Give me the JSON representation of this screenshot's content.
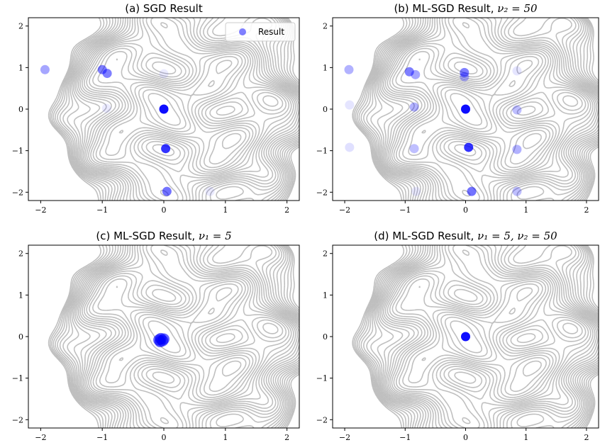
{
  "colors": {
    "contour": "#b4b4b4",
    "marker": "#0000ff",
    "axes": "#000000",
    "legend_border": "#cccccc"
  },
  "chart_data": [
    {
      "type": "scatter",
      "title": "(a) SGD Result",
      "title_math": "",
      "xlim": [
        -2.2,
        2.2
      ],
      "ylim": [
        -2.2,
        2.2
      ],
      "x_ticks": [
        -2,
        -1,
        0,
        1,
        2
      ],
      "y_ticks": [
        -2,
        -1,
        0,
        1,
        2
      ],
      "x_tick_labels": [
        "−2",
        "−1",
        "0",
        "1",
        "2"
      ],
      "y_tick_labels": [
        "−2",
        "−1",
        "0",
        "1",
        "2"
      ],
      "legend": {
        "label": "Result",
        "placement": "top-right"
      },
      "background": "contour lines of a multi-modal objective",
      "points": [
        {
          "x": -1.93,
          "y": 0.95,
          "alpha": 0.35
        },
        {
          "x": -1.0,
          "y": 0.95,
          "alpha": 0.5
        },
        {
          "x": -0.92,
          "y": 0.86,
          "alpha": 0.5
        },
        {
          "x": 0.0,
          "y": 0.85,
          "alpha": 0.08
        },
        {
          "x": -0.93,
          "y": 0.02,
          "alpha": 0.08
        },
        {
          "x": 0.0,
          "y": 0.0,
          "alpha": 0.95
        },
        {
          "x": 0.03,
          "y": -0.95,
          "alpha": 0.8
        },
        {
          "x": 0.05,
          "y": -1.98,
          "alpha": 0.55
        },
        {
          "x": 0.75,
          "y": -1.98,
          "alpha": 0.08
        }
      ]
    },
    {
      "type": "scatter",
      "title": "(b) ML-SGD Result, ",
      "title_math": "ν₂ = 50",
      "xlim": [
        -2.2,
        2.2
      ],
      "ylim": [
        -2.2,
        2.2
      ],
      "x_ticks": [
        -2,
        -1,
        0,
        1,
        2
      ],
      "y_ticks": [
        -2,
        -1,
        0,
        1,
        2
      ],
      "x_tick_labels": [
        "−2",
        "−1",
        "0",
        "1",
        "2"
      ],
      "y_tick_labels": [
        "−2",
        "−1",
        "0",
        "1",
        "2"
      ],
      "background": "contour lines of a multi-modal objective",
      "points": [
        {
          "x": -1.93,
          "y": 0.95,
          "alpha": 0.3
        },
        {
          "x": -0.93,
          "y": 0.9,
          "alpha": 0.5
        },
        {
          "x": -0.83,
          "y": 0.83,
          "alpha": 0.35
        },
        {
          "x": -0.02,
          "y": 0.88,
          "alpha": 0.5
        },
        {
          "x": -0.02,
          "y": 0.78,
          "alpha": 0.3
        },
        {
          "x": 0.85,
          "y": 0.92,
          "alpha": 0.1
        },
        {
          "x": -1.92,
          "y": 0.1,
          "alpha": 0.1
        },
        {
          "x": -0.85,
          "y": 0.05,
          "alpha": 0.3
        },
        {
          "x": 0.0,
          "y": 0.0,
          "alpha": 0.95
        },
        {
          "x": 0.85,
          "y": -0.02,
          "alpha": 0.25
        },
        {
          "x": -1.92,
          "y": -0.92,
          "alpha": 0.12
        },
        {
          "x": -0.85,
          "y": -0.95,
          "alpha": 0.25
        },
        {
          "x": 0.05,
          "y": -0.92,
          "alpha": 0.8
        },
        {
          "x": 0.85,
          "y": -0.97,
          "alpha": 0.3
        },
        {
          "x": 0.1,
          "y": -1.98,
          "alpha": 0.55
        },
        {
          "x": 0.85,
          "y": -1.98,
          "alpha": 0.25
        },
        {
          "x": -0.82,
          "y": -1.98,
          "alpha": 0.08
        }
      ]
    },
    {
      "type": "scatter",
      "title": "(c) ML-SGD Result, ",
      "title_math": "ν₁ = 5",
      "xlim": [
        -2.2,
        2.2
      ],
      "ylim": [
        -2.2,
        2.2
      ],
      "x_ticks": [
        -2,
        -1,
        0,
        1,
        2
      ],
      "y_ticks": [
        -2,
        -1,
        0,
        1,
        2
      ],
      "x_tick_labels": [
        "−2",
        "−1",
        "0",
        "1",
        "2"
      ],
      "y_tick_labels": [
        "−2",
        "−1",
        "0",
        "1",
        "2"
      ],
      "background": "contour lines of a multi-modal objective",
      "points": [
        {
          "x": -0.05,
          "y": -0.05,
          "alpha": 0.6
        },
        {
          "x": -0.02,
          "y": -0.1,
          "alpha": 0.6
        },
        {
          "x": -0.06,
          "y": -0.12,
          "alpha": 0.6
        },
        {
          "x": 0.0,
          "y": -0.06,
          "alpha": 0.6
        },
        {
          "x": -0.08,
          "y": -0.08,
          "alpha": 0.6
        }
      ]
    },
    {
      "type": "scatter",
      "title": "(d) ML-SGD Result, ",
      "title_math": "ν₁ = 5, ν₂ = 50",
      "xlim": [
        -2.2,
        2.2
      ],
      "ylim": [
        -2.2,
        2.2
      ],
      "x_ticks": [
        -2,
        -1,
        0,
        1,
        2
      ],
      "y_ticks": [
        -2,
        -1,
        0,
        1,
        2
      ],
      "x_tick_labels": [
        "−2",
        "−1",
        "0",
        "1",
        "2"
      ],
      "y_tick_labels": [
        "−2",
        "−1",
        "0",
        "1",
        "2"
      ],
      "background": "contour lines of a multi-modal objective",
      "points": [
        {
          "x": 0.0,
          "y": 0.0,
          "alpha": 0.95
        }
      ]
    }
  ]
}
